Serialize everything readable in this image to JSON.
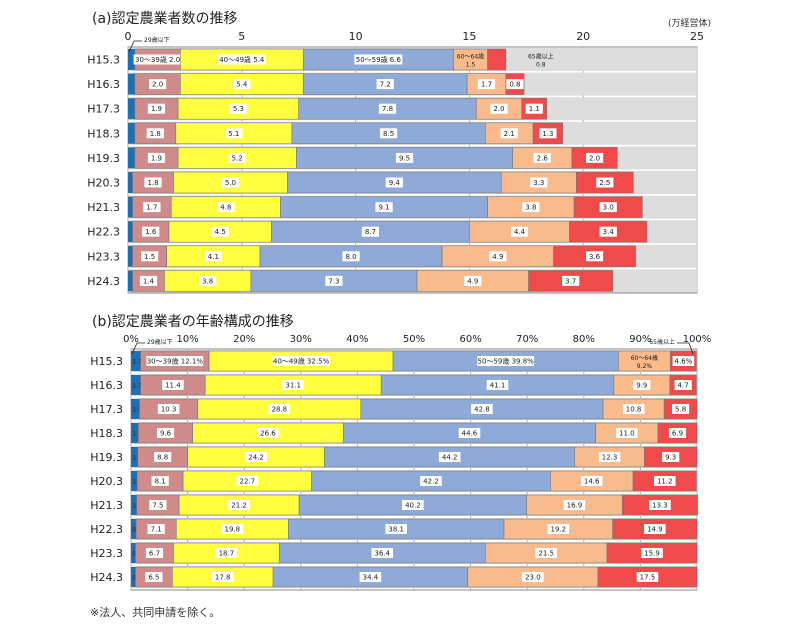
{
  "colors": [
    "#1f6fb5",
    "#d08a8a",
    "#ffff40",
    "#8eaad8",
    "#f9ba8c",
    "#f04a4a"
  ],
  "series_names": [
    "29歳以下",
    "30～39歳",
    "40～49歳",
    "50～59歳",
    "60～64歳",
    "65歳以上"
  ],
  "note": "※法人、共同申請を除く。",
  "chart_data": [
    {
      "type": "bar",
      "stacked": true,
      "orientation": "horizontal",
      "title": "(a)認定農業者数の推移",
      "unit": "(万経営体)",
      "categories": [
        "H15.3",
        "H16.3",
        "H17.3",
        "H18.3",
        "H19.3",
        "H20.3",
        "H21.3",
        "H22.3",
        "H23.3",
        "H24.3"
      ],
      "xlim": [
        0,
        25
      ],
      "ticks": [
        "0",
        "5",
        "10",
        "15",
        "20",
        "25"
      ],
      "grid": true,
      "series": [
        {
          "name": "29歳以下",
          "values": [
            0.3,
            0.3,
            0.3,
            0.3,
            0.3,
            0.2,
            0.2,
            0.2,
            0.2,
            0.2
          ]
        },
        {
          "name": "30～39歳",
          "values": [
            2.0,
            2.0,
            1.9,
            1.8,
            1.9,
            1.8,
            1.7,
            1.6,
            1.5,
            1.4
          ],
          "labels": [
            "2.0",
            "2.0",
            "1.9",
            "1.8",
            "1.9",
            "1.8",
            "1.7",
            "1.6",
            "1.5",
            "1.4"
          ]
        },
        {
          "name": "40～49歳",
          "values": [
            5.4,
            5.4,
            5.3,
            5.1,
            5.2,
            5.0,
            4.8,
            4.5,
            4.1,
            3.8
          ],
          "labels": [
            "5.4",
            "5.4",
            "5.3",
            "5.1",
            "5.2",
            "5.0",
            "4.8",
            "4.5",
            "4.1",
            "3.8"
          ]
        },
        {
          "name": "50～59歳",
          "values": [
            6.6,
            7.2,
            7.8,
            8.5,
            9.5,
            9.4,
            9.1,
            8.7,
            8.0,
            7.3
          ],
          "labels": [
            "6.6",
            "7.2",
            "7.8",
            "8.5",
            "9.5",
            "9.4",
            "9.1",
            "8.7",
            "8.0",
            "7.3"
          ]
        },
        {
          "name": "60～64歳",
          "values": [
            1.5,
            1.7,
            2.0,
            2.1,
            2.6,
            3.3,
            3.8,
            4.4,
            4.9,
            4.9
          ],
          "labels": [
            "1.5",
            "1.7",
            "2.0",
            "2.1",
            "2.6",
            "3.3",
            "3.8",
            "4.4",
            "4.9",
            "4.9"
          ]
        },
        {
          "name": "65歳以上",
          "values": [
            0.8,
            0.8,
            1.1,
            1.3,
            2.0,
            2.5,
            3.0,
            3.4,
            3.6,
            3.7
          ],
          "labels": [
            "0.8",
            "0.8",
            "1.1",
            "1.3",
            "2.0",
            "2.5",
            "3.0",
            "3.4",
            "3.6",
            "3.7"
          ]
        }
      ]
    },
    {
      "type": "bar",
      "stacked": true,
      "orientation": "horizontal",
      "title": "(b)認定農業者の年齢構成の推移",
      "categories": [
        "H15.3",
        "H16.3",
        "H17.3",
        "H18.3",
        "H19.3",
        "H20.3",
        "H21.3",
        "H22.3",
        "H23.3",
        "H24.3"
      ],
      "xlim": [
        0,
        100
      ],
      "ticks": [
        "0%",
        "10%",
        "20%",
        "30%",
        "40%",
        "50%",
        "60%",
        "70%",
        "80%",
        "90%",
        "100%"
      ],
      "grid": true,
      "series": [
        {
          "name": "29歳以下",
          "values": [
            1.7,
            1.7,
            1.5,
            1.3,
            1.2,
            1.1,
            1.0,
            0.9,
            0.8,
            0.8
          ],
          "labels": [
            "1.7",
            "1.7",
            "1.5",
            "1.3",
            "1.2",
            "1.1",
            "1.0",
            "0.9",
            "0.8",
            "0.8"
          ]
        },
        {
          "name": "30～39歳",
          "values": [
            12.1,
            11.4,
            10.3,
            9.6,
            8.8,
            8.1,
            7.5,
            7.1,
            6.7,
            6.5
          ],
          "labels": [
            "12.1%",
            "11.4",
            "10.3",
            "9.6",
            "8.8",
            "8.1",
            "7.5",
            "7.1",
            "6.7",
            "6.5"
          ]
        },
        {
          "name": "40～49歳",
          "values": [
            32.5,
            31.1,
            28.8,
            26.6,
            24.2,
            22.7,
            21.2,
            19.8,
            18.7,
            17.8
          ],
          "labels": [
            "32.5%",
            "31.1",
            "28.8",
            "26.6",
            "24.2",
            "22.7",
            "21.2",
            "19.8",
            "18.7",
            "17.8"
          ]
        },
        {
          "name": "50～59歳",
          "values": [
            39.8,
            41.1,
            42.8,
            44.6,
            44.2,
            42.2,
            40.2,
            38.1,
            36.4,
            34.4
          ],
          "labels": [
            "39.8%",
            "41.1",
            "42.8",
            "44.6",
            "44.2",
            "42.2",
            "40.2",
            "38.1",
            "36.4",
            "34.4"
          ]
        },
        {
          "name": "60～64歳",
          "values": [
            9.2,
            9.9,
            10.8,
            11.0,
            12.3,
            14.6,
            16.9,
            19.2,
            21.5,
            23.0
          ],
          "labels": [
            "9.2%",
            "9.9",
            "10.8",
            "11.0",
            "12.3",
            "14.6",
            "16.9",
            "19.2",
            "21.5",
            "23.0"
          ]
        },
        {
          "name": "65歳以上",
          "values": [
            4.6,
            4.7,
            5.8,
            6.9,
            9.3,
            11.2,
            13.3,
            14.9,
            15.9,
            17.5
          ],
          "labels": [
            "4.6%",
            "4.7",
            "5.8",
            "6.9",
            "9.3",
            "11.2",
            "13.3",
            "14.9",
            "15.9",
            "17.5"
          ]
        }
      ]
    }
  ]
}
